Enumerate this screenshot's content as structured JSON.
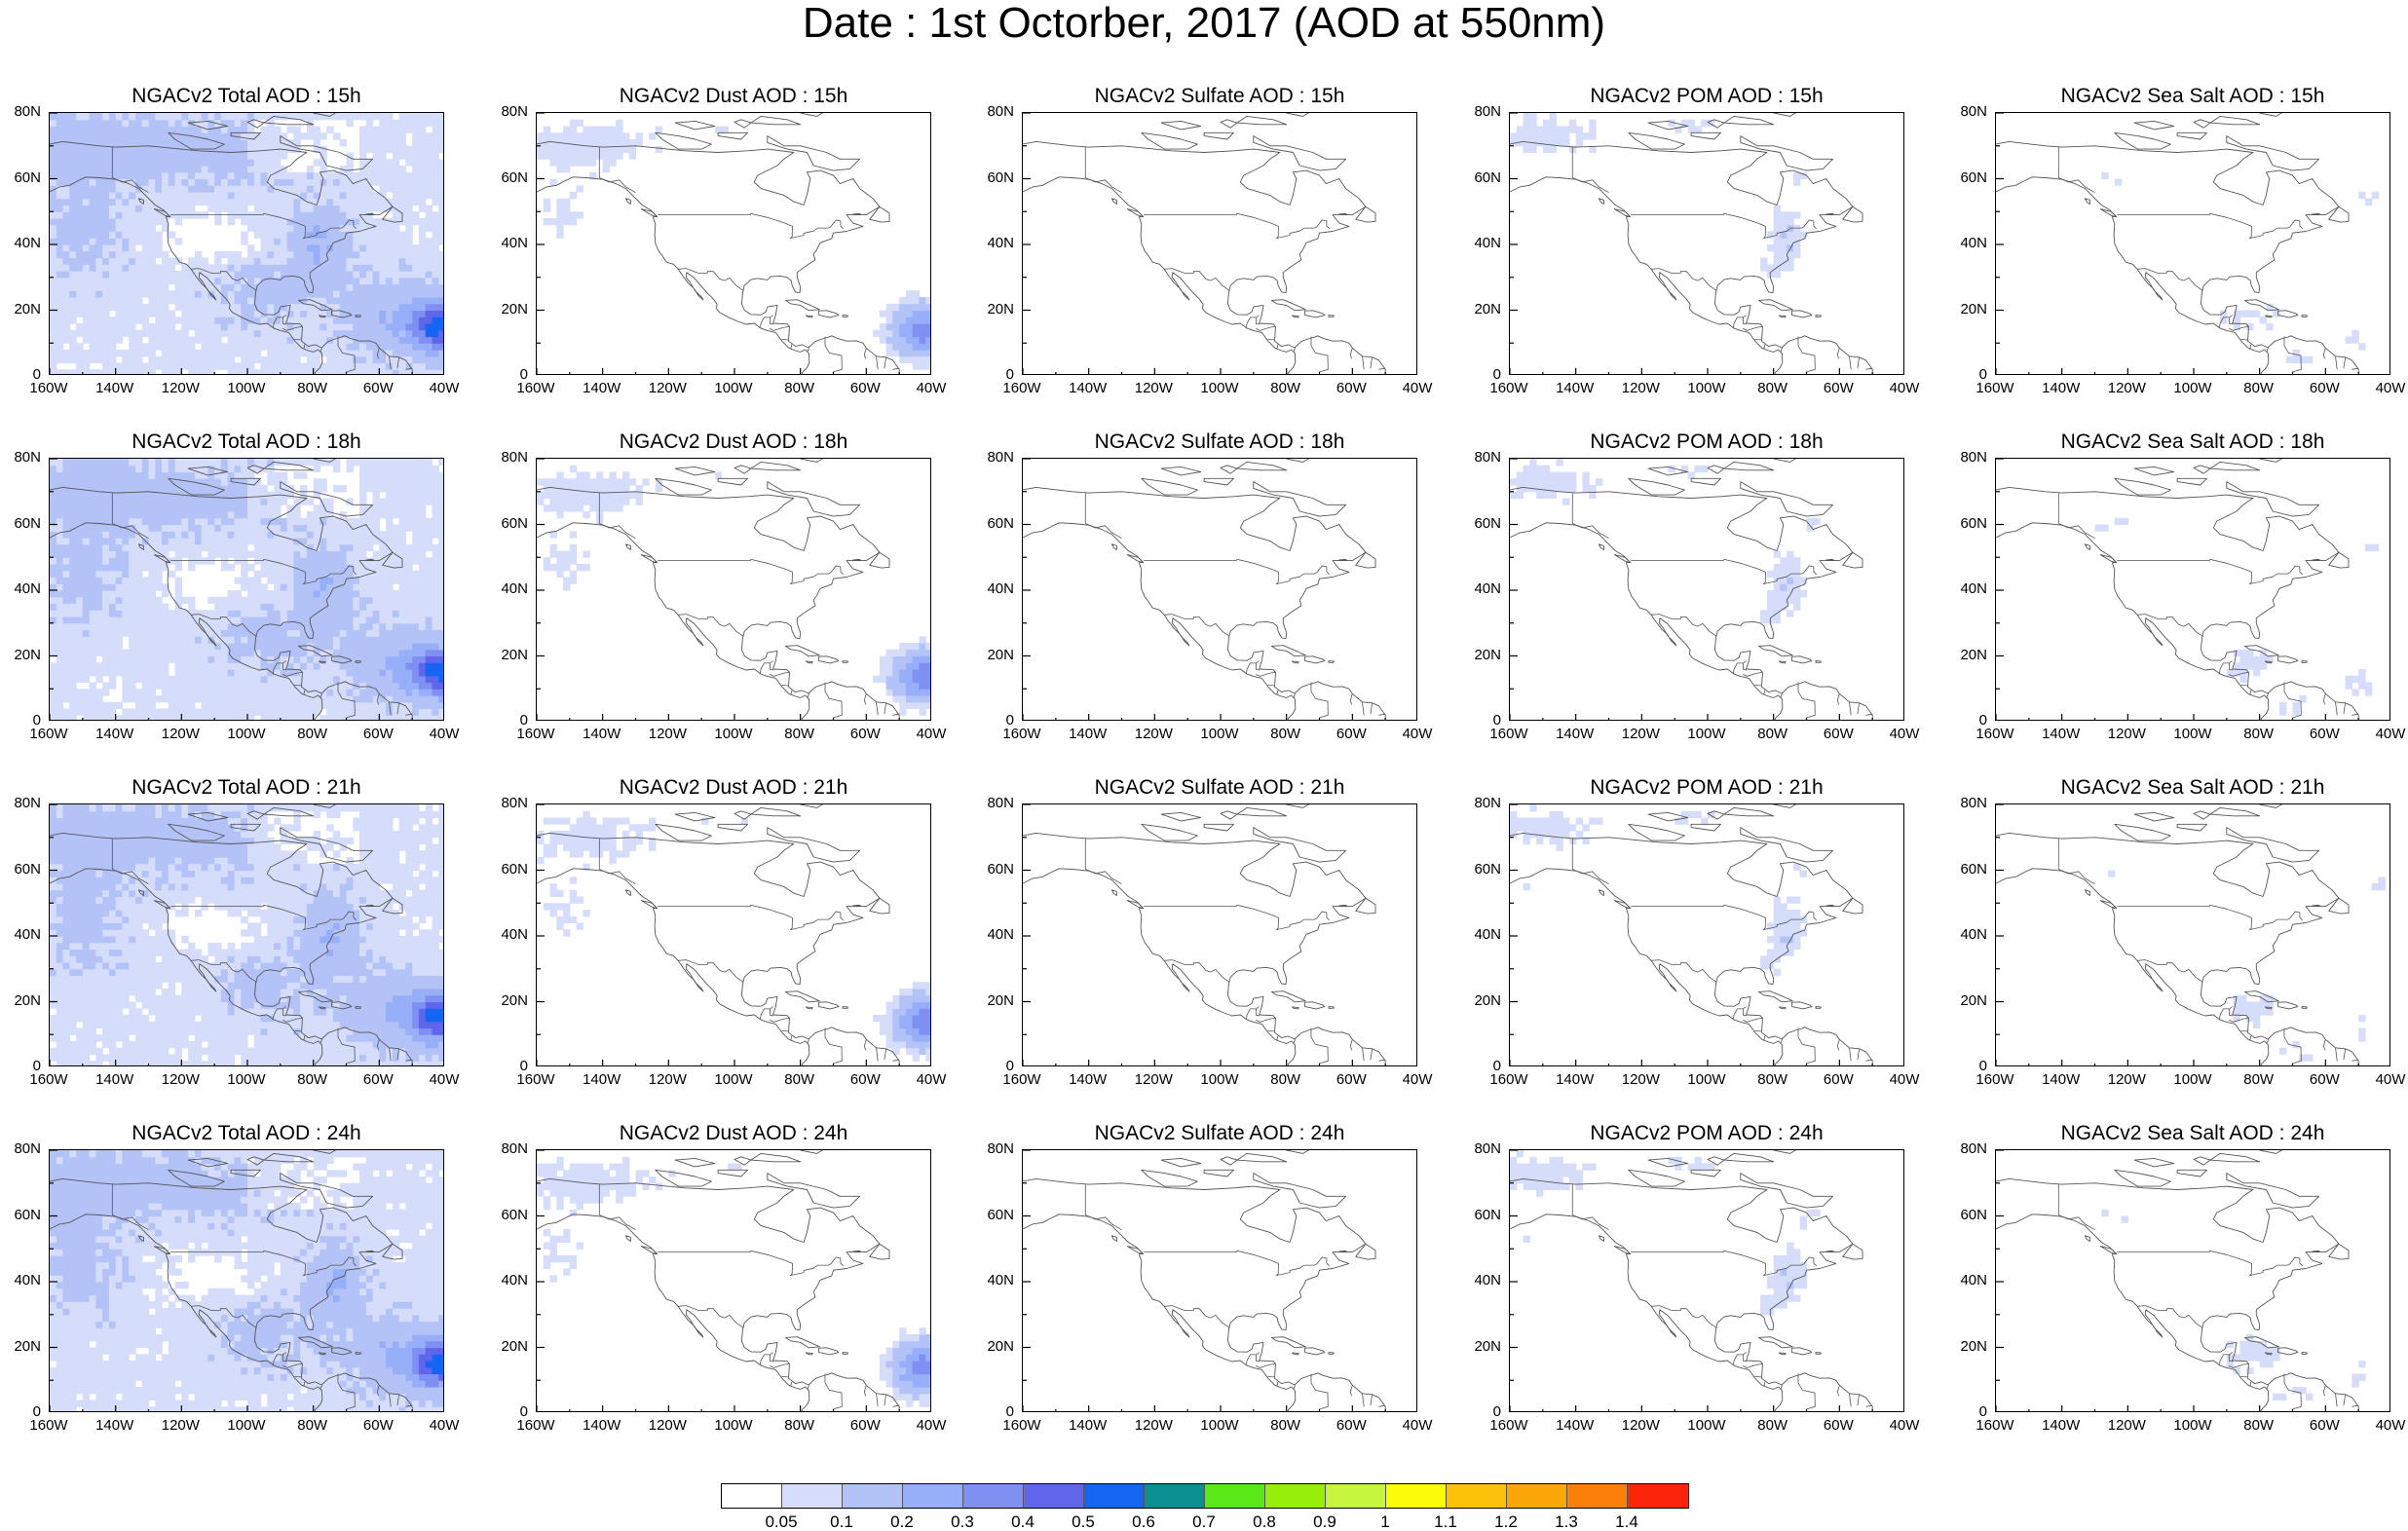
{
  "title": "Date : 1st Octorber, 2017 (AOD at 550nm)",
  "lat_labels": [
    "80N",
    "60N",
    "40N",
    "20N",
    "0"
  ],
  "lon_labels": [
    "160W",
    "140W",
    "120W",
    "100W",
    "80W",
    "60W",
    "40W"
  ],
  "panels": [
    {
      "title": "NGACv2 Total AOD : 15h",
      "species": "total"
    },
    {
      "title": "NGACv2 Dust AOD : 15h",
      "species": "dust"
    },
    {
      "title": "NGACv2 Sulfate AOD : 15h",
      "species": "sulfate"
    },
    {
      "title": "NGACv2 POM AOD : 15h",
      "species": "pom"
    },
    {
      "title": "NGACv2 Sea Salt AOD : 15h",
      "species": "seasalt"
    },
    {
      "title": "NGACv2 Total AOD : 18h",
      "species": "total"
    },
    {
      "title": "NGACv2 Dust AOD : 18h",
      "species": "dust"
    },
    {
      "title": "NGACv2 Sulfate AOD : 18h",
      "species": "sulfate"
    },
    {
      "title": "NGACv2 POM AOD : 18h",
      "species": "pom"
    },
    {
      "title": "NGACv2 Sea Salt AOD : 18h",
      "species": "seasalt"
    },
    {
      "title": "NGACv2 Total AOD : 21h",
      "species": "total"
    },
    {
      "title": "NGACv2 Dust AOD : 21h",
      "species": "dust"
    },
    {
      "title": "NGACv2 Sulfate AOD : 21h",
      "species": "sulfate"
    },
    {
      "title": "NGACv2 POM AOD : 21h",
      "species": "pom"
    },
    {
      "title": "NGACv2 Sea Salt AOD : 21h",
      "species": "seasalt"
    },
    {
      "title": "NGACv2 Total AOD : 24h",
      "species": "total"
    },
    {
      "title": "NGACv2 Dust AOD : 24h",
      "species": "dust"
    },
    {
      "title": "NGACv2 Sulfate AOD : 24h",
      "species": "sulfate"
    },
    {
      "title": "NGACv2 POM AOD : 24h",
      "species": "pom"
    },
    {
      "title": "NGACv2 Sea Salt  AOD : 24h",
      "species": "seasalt"
    }
  ],
  "colorbar": {
    "colors": [
      "#ffffff",
      "#d5ddfb",
      "#b3c2f7",
      "#97aef8",
      "#7f8ff2",
      "#5f66ea",
      "#1565f2",
      "#0b8f8f",
      "#5ae818",
      "#97ee0a",
      "#c5f53c",
      "#fbfb0a",
      "#fbc20a",
      "#fba70a",
      "#fb7f0a",
      "#fb250a"
    ],
    "labels": [
      "0.05",
      "0.1",
      "0.2",
      "0.3",
      "0.4",
      "0.5",
      "0.6",
      "0.7",
      "0.8",
      "0.9",
      "1",
      "1.1",
      "1.2",
      "1.3",
      "1.4"
    ]
  }
}
